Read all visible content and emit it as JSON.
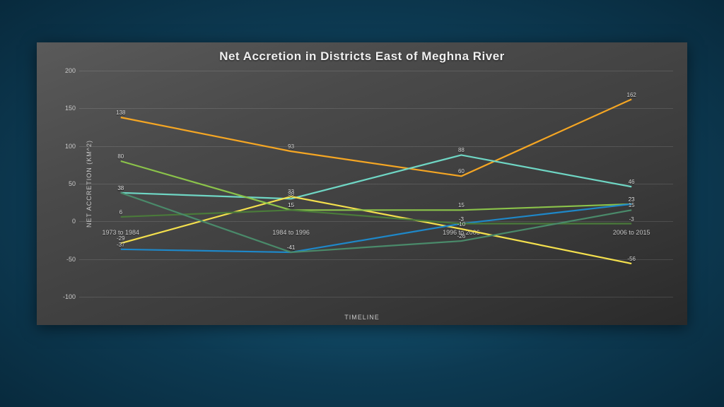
{
  "chart": {
    "type": "line",
    "title": "Net Accretion in Districts East of Meghna River",
    "title_fontsize": 17,
    "title_color": "#f0f0f0",
    "panel_bg_gradient": [
      "#5a5a5a",
      "#4a4a4a",
      "#3a3a3a",
      "#2a2a2a"
    ],
    "page_bg_gradient": [
      "#1a6a8e",
      "#0d3a52",
      "#082a3d"
    ],
    "xlabel": "TIMELINE",
    "ylabel": "NET ACCRETION (KM^2)",
    "label_fontsize": 9,
    "label_color": "#c8c8c8",
    "categories": [
      "1973 to 1984",
      "1984 to 1996",
      "1996 to 2006",
      "2006 to 2015"
    ],
    "xtick_y_value": -10,
    "ylim": [
      -100,
      200
    ],
    "ytick_step": 50,
    "grid_color": "rgba(255,255,255,0.12)",
    "line_width": 2.2,
    "point_label_fontsize": 8,
    "point_label_color": "#d8d8d8",
    "series": [
      {
        "name": "orange",
        "color": "#f5a623",
        "values": [
          138,
          93,
          60,
          162
        ]
      },
      {
        "name": "teal-light",
        "color": "#6fd6c4",
        "values": [
          38,
          30,
          88,
          46
        ]
      },
      {
        "name": "yellow",
        "color": "#f4e04d",
        "values": [
          -29,
          33,
          -10,
          -56
        ]
      },
      {
        "name": "lime",
        "color": "#8bc34a",
        "values": [
          80,
          15,
          15,
          23
        ]
      },
      {
        "name": "blue",
        "color": "#1e88c9",
        "values": [
          -37,
          -41,
          -3,
          23
        ]
      },
      {
        "name": "olive",
        "color": "#4a7a3a",
        "values": [
          6,
          15,
          -3,
          -3
        ]
      },
      {
        "name": "teal-olive",
        "color": "#4a8a6a",
        "values": [
          38,
          -41,
          -26,
          15
        ]
      }
    ]
  }
}
